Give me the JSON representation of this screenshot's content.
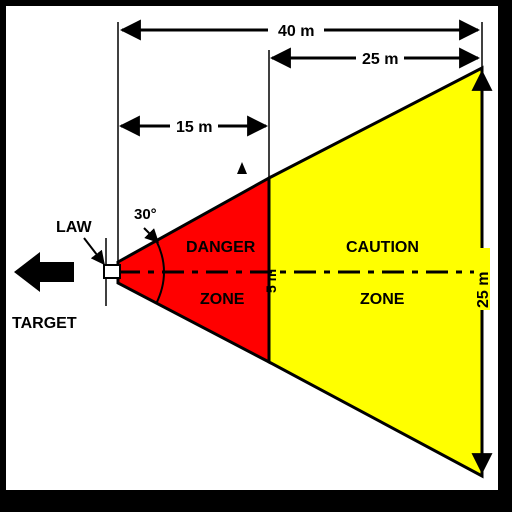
{
  "labels": {
    "law": "LAW",
    "target": "TARGET",
    "angle": "30°",
    "danger_line1": "DANGER",
    "danger_line2": "ZONE",
    "caution_line1": "CAUTION",
    "caution_line2": "ZONE",
    "dim_40": "40 m",
    "dim_25_top": "25 m",
    "dim_15": "15 m",
    "dim_25_side": "25 m",
    "dim_5": "5 m"
  },
  "colors": {
    "danger": "#ff0000",
    "caution": "#ffff00",
    "line": "#000000",
    "background": "#ffffff",
    "frame": "#000000"
  },
  "icons": {
    "target_arrow": "arrow-left-icon",
    "marker": "triangle-up-icon"
  }
}
